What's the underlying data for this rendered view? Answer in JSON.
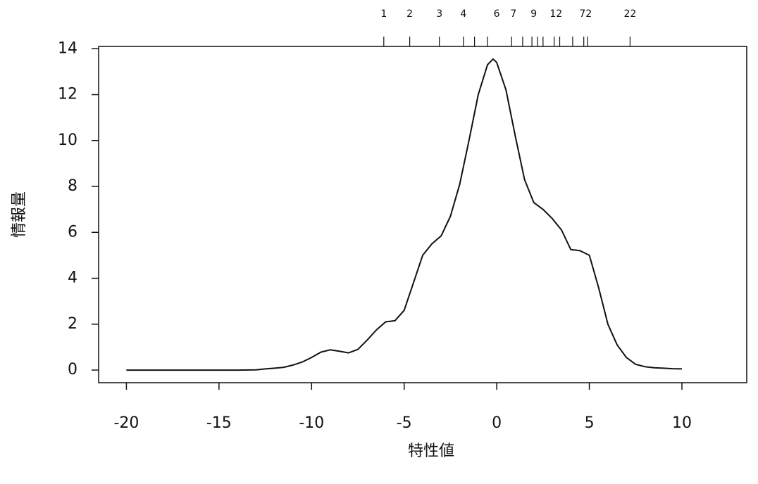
{
  "chart_data": {
    "type": "line",
    "title": "",
    "xlabel": "特性値",
    "ylabel": "情報量",
    "xlim": [
      -21.5,
      13.5
    ],
    "ylim": [
      -0.55,
      14.1
    ],
    "grid": false,
    "line_color": "#111111",
    "x_ticks": [
      -20,
      -15,
      -10,
      -5,
      0,
      5,
      10
    ],
    "y_ticks": [
      0,
      2,
      4,
      6,
      8,
      10,
      12,
      14
    ],
    "top_rug": {
      "labeled": [
        {
          "x": -6.1,
          "label": "1"
        },
        {
          "x": -4.7,
          "label": "2"
        },
        {
          "x": -3.1,
          "label": "3"
        },
        {
          "x": -1.8,
          "label": "4"
        },
        {
          "x": 0.0,
          "label": "6"
        },
        {
          "x": 0.9,
          "label": "7"
        },
        {
          "x": 2.0,
          "label": "9"
        },
        {
          "x": 3.2,
          "label": "12"
        },
        {
          "x": 4.8,
          "label": "72"
        },
        {
          "x": 7.2,
          "label": "22"
        }
      ],
      "marks": [
        -6.1,
        -4.7,
        -3.1,
        -1.8,
        -1.2,
        -0.5,
        0.8,
        1.4,
        1.9,
        2.2,
        2.5,
        3.1,
        3.4,
        4.1,
        4.7,
        4.9,
        7.2
      ]
    },
    "series": [
      {
        "x": [
          -20,
          -18,
          -16,
          -14,
          -13,
          -12.5,
          -12,
          -11.5,
          -11,
          -10.5,
          -10,
          -9.5,
          -9,
          -8.5,
          -8,
          -7.5,
          -7,
          -6.5,
          -6,
          -5.5,
          -5,
          -4.5,
          -4,
          -3.5,
          -3,
          -2.5,
          -2,
          -1.5,
          -1,
          -0.5,
          -0.2,
          0,
          0.5,
          1,
          1.5,
          2,
          2.5,
          3,
          3.5,
          4,
          4.5,
          5,
          5.5,
          6,
          6.5,
          7,
          7.5,
          8,
          8.5,
          9,
          9.5,
          10
        ],
        "y": [
          0.0,
          0.0,
          0.0,
          0.0,
          0.01,
          0.05,
          0.08,
          0.12,
          0.22,
          0.35,
          0.55,
          0.78,
          0.88,
          0.82,
          0.75,
          0.9,
          1.3,
          1.75,
          2.1,
          2.15,
          2.6,
          3.8,
          5.0,
          5.5,
          5.85,
          6.7,
          8.1,
          10.0,
          12.0,
          13.3,
          13.55,
          13.4,
          12.2,
          10.2,
          8.3,
          7.3,
          7.0,
          6.6,
          6.1,
          5.25,
          5.2,
          5.0,
          3.6,
          2.0,
          1.1,
          0.55,
          0.25,
          0.15,
          0.1,
          0.08,
          0.06,
          0.05
        ]
      }
    ]
  }
}
